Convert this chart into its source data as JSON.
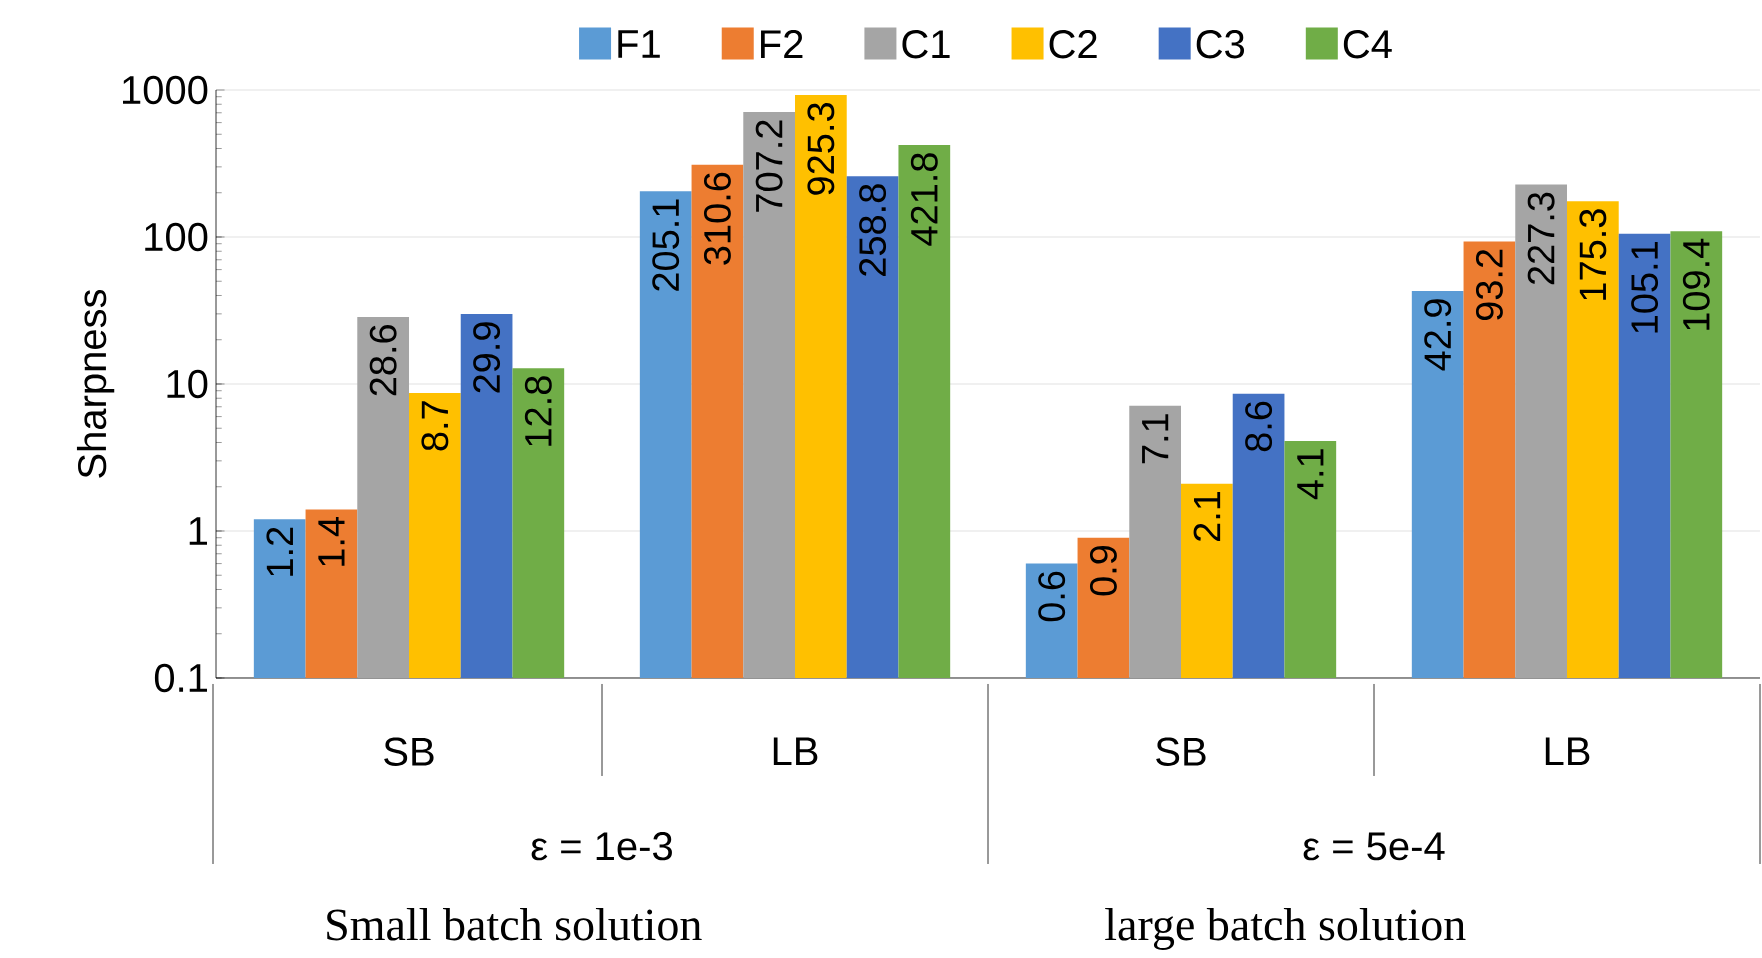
{
  "chart_data": {
    "type": "bar",
    "ylabel": "Sharpness",
    "categories": [
      "SB",
      "LB",
      "SB",
      "LB"
    ],
    "series": [
      {
        "name": "F1",
        "color": "#5b9bd5",
        "values": [
          1.2,
          205.1,
          0.6,
          42.9
        ]
      },
      {
        "name": "F2",
        "color": "#ed7d31",
        "values": [
          1.4,
          310.6,
          0.9,
          93.2
        ]
      },
      {
        "name": "C1",
        "color": "#a5a5a5",
        "values": [
          28.6,
          707.2,
          7.1,
          227.3
        ]
      },
      {
        "name": "C2",
        "color": "#ffc000",
        "values": [
          8.7,
          925.3,
          2.1,
          175.3
        ]
      },
      {
        "name": "C3",
        "color": "#4472c4",
        "values": [
          29.9,
          258.8,
          8.6,
          105.1
        ]
      },
      {
        "name": "C4",
        "color": "#70ad47",
        "values": [
          12.8,
          421.8,
          4.1,
          109.4
        ]
      }
    ],
    "log": "y",
    "ylim": [
      0.1,
      1000
    ],
    "yticks": [
      0.1,
      1,
      10,
      100,
      1000
    ],
    "grid": "y",
    "legend": "top",
    "data_labels": true,
    "annotations": [
      "ε = 1e-3",
      "ε = 5e-4",
      "Small batch solution",
      "large batch solution"
    ]
  }
}
